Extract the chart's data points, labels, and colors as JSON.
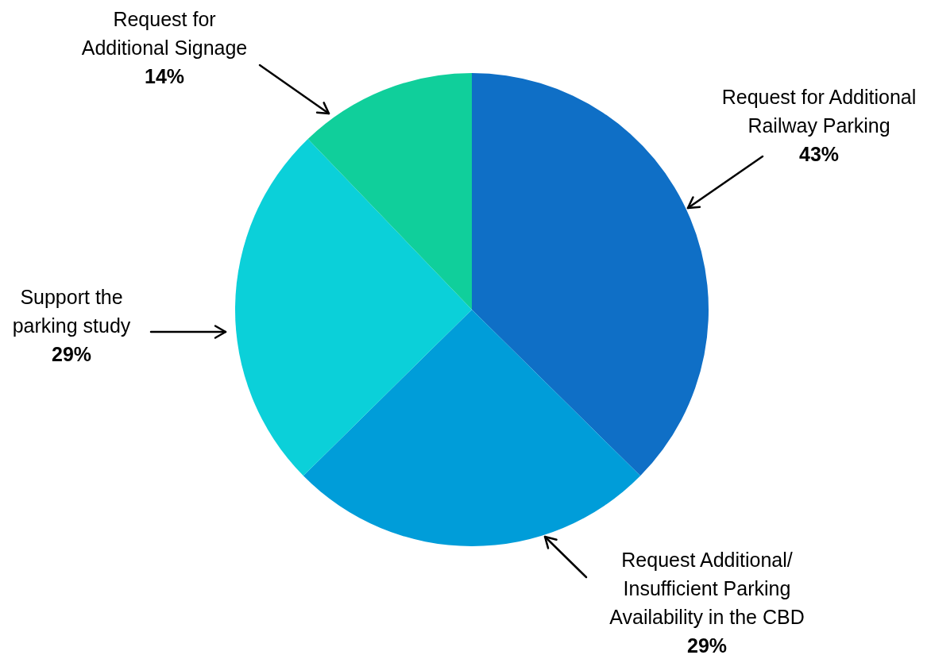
{
  "chart_data": {
    "type": "pie",
    "categories": [
      "Request for Additional Railway Parking",
      "Request Additional/ Insufficient Parking Availability in the CBD",
      "Support the parking study",
      "Request for Additional Signage"
    ],
    "values": [
      43,
      29,
      29,
      14
    ],
    "value_labels": [
      "43%",
      "29%",
      "29%",
      "14%"
    ],
    "colors": [
      "#0f6fc6",
      "#009dd9",
      "#0bd0d9",
      "#10cf9b"
    ]
  }
}
